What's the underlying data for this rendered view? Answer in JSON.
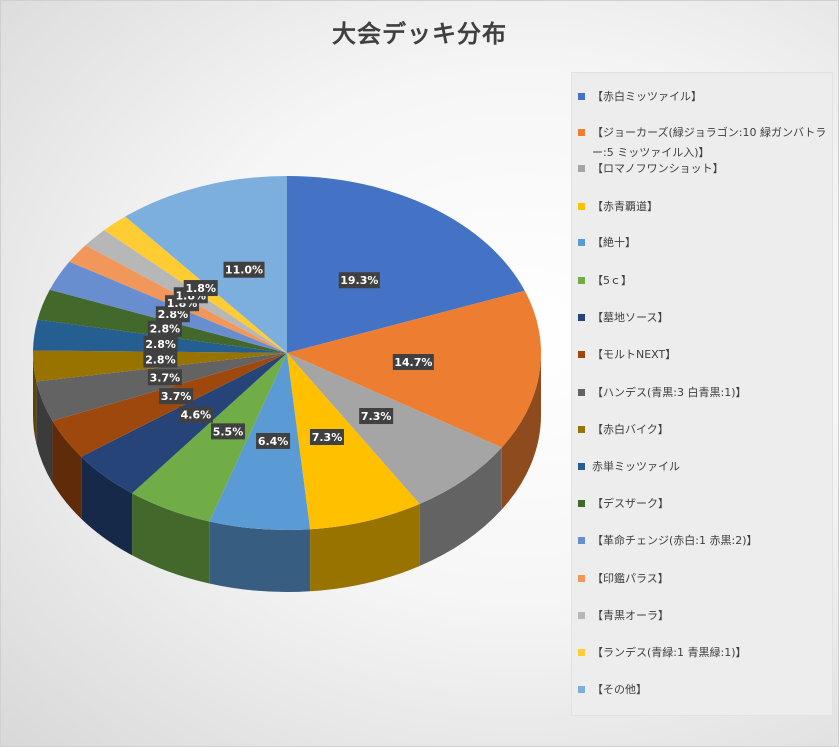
{
  "chart_data": {
    "type": "pie",
    "title": "大会デッキ分布",
    "legend_position": "right",
    "three_d": true,
    "slices": [
      {
        "name": "【赤白ミッツァイル】",
        "value": 19.3,
        "label": "19.3%",
        "color": "#4472c4"
      },
      {
        "name": "【ジョーカーズ(緑ジョラゴン:10 緑ガンバトラー:5 ミッツァイル入)】",
        "value": 14.7,
        "label": "14.7%",
        "color": "#ed7d31"
      },
      {
        "name": "【ロマノフワンショット】",
        "value": 7.3,
        "label": "7.3%",
        "color": "#a5a5a5"
      },
      {
        "name": "【赤青覇道】",
        "value": 7.3,
        "label": "7.3%",
        "color": "#ffc000"
      },
      {
        "name": "【絶十】",
        "value": 6.4,
        "label": "6.4%",
        "color": "#5b9bd5"
      },
      {
        "name": "【5ｃ】",
        "value": 5.5,
        "label": "5.5%",
        "color": "#70ad47"
      },
      {
        "name": "【墓地ソース】",
        "value": 4.6,
        "label": "4.6%",
        "color": "#264478"
      },
      {
        "name": "【モルトNEXT】",
        "value": 3.7,
        "label": "3.7%",
        "color": "#9e480e"
      },
      {
        "name": "【ハンデス(青黒:3 白青黒:1)】",
        "value": 3.7,
        "label": "3.7%",
        "color": "#636363"
      },
      {
        "name": "【赤白バイク】",
        "value": 2.8,
        "label": "2.8%",
        "color": "#997300"
      },
      {
        "name": "赤単ミッツァイル",
        "value": 2.8,
        "label": "2.8%",
        "color": "#255e91"
      },
      {
        "name": "【デスザーク】",
        "value": 2.8,
        "label": "2.8%",
        "color": "#43682b"
      },
      {
        "name": "【革命チェンジ(赤白:1 赤黒:2)】",
        "value": 2.8,
        "label": "2.8%",
        "color": "#698ed0"
      },
      {
        "name": "【印鑑パラス】",
        "value": 1.8,
        "label": "1.8%",
        "color": "#f1975a"
      },
      {
        "name": "【青黒オーラ】",
        "value": 1.8,
        "label": "1.8%",
        "color": "#b7b7b7"
      },
      {
        "name": "【ランデス(青緑:1 青黒緑:1)】",
        "value": 1.8,
        "label": "1.8%",
        "color": "#ffcd33"
      },
      {
        "name": "【その他】",
        "value": 11.0,
        "label": "11.0%",
        "color": "#7cafdd"
      }
    ]
  }
}
